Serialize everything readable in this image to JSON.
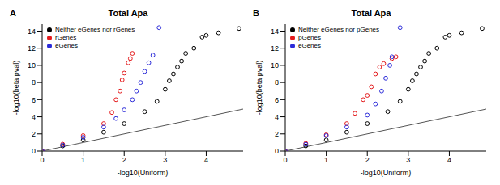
{
  "chart_data": [
    {
      "panel": "A",
      "type": "scatter",
      "title": "Total Apa",
      "x_label": "-log10(Uniform)",
      "y_label": "-log10(beta pval)",
      "xlim": [
        0,
        4.9
      ],
      "ylim": [
        0,
        14.8
      ],
      "xticks": [
        0,
        1,
        2,
        3,
        4
      ],
      "yticks": [
        0,
        2,
        4,
        6,
        8,
        10,
        12,
        14
      ],
      "legend": "upper left",
      "marker": "circle",
      "series": [
        {
          "name": "Neither eGenes nor rGenes",
          "color": "#000000",
          "x": [
            0,
            0.5,
            1,
            1.5,
            2,
            2.5,
            2.8,
            3.0,
            3.1,
            3.2,
            3.3,
            3.4,
            3.5,
            3.7,
            3.9,
            4.0,
            4.3,
            4.8
          ],
          "values": [
            0,
            0.6,
            1.3,
            2.2,
            3.2,
            4.6,
            5.8,
            7.2,
            8.2,
            9,
            9.8,
            10.5,
            11.4,
            12,
            13.3,
            13.5,
            13.8,
            14.3
          ]
        },
        {
          "name": "rGenes",
          "color": "#e41a1c",
          "x": [
            0,
            0.5,
            1,
            1.5,
            1.7,
            1.8,
            1.9,
            1.95,
            2.0,
            2.1,
            2.15,
            2.2
          ],
          "values": [
            0,
            0.8,
            1.8,
            3.2,
            4.5,
            6,
            7,
            8.3,
            9.1,
            10.3,
            10.8,
            11.4
          ]
        },
        {
          "name": "eGenes",
          "color": "#2b2bd9",
          "x": [
            0,
            0.5,
            1,
            1.5,
            1.8,
            2.0,
            2.2,
            2.3,
            2.4,
            2.5,
            2.6,
            2.7,
            2.85
          ],
          "values": [
            0,
            0.7,
            1.6,
            2.8,
            3.8,
            4.8,
            6,
            7,
            8,
            9.3,
            10.3,
            11.2,
            14.4
          ]
        }
      ],
      "reference_line": {
        "x": [
          0,
          4.9
        ],
        "values": [
          0,
          4.9
        ],
        "color": "#555555",
        "line_style": "solid"
      }
    },
    {
      "panel": "B",
      "type": "scatter",
      "title": "Total Apa",
      "x_label": "-log10(Uniform)",
      "y_label": "-log10(beta pval)",
      "xlim": [
        0,
        4.9
      ],
      "ylim": [
        0,
        14.8
      ],
      "xticks": [
        0,
        1,
        2,
        3,
        4
      ],
      "yticks": [
        0,
        2,
        4,
        6,
        8,
        10,
        12,
        14
      ],
      "legend": "upper left",
      "marker": "circle",
      "series": [
        {
          "name": "Neither eGenes nor pGenes",
          "color": "#000000",
          "x": [
            0,
            0.5,
            1,
            1.5,
            2,
            2.5,
            2.8,
            3.0,
            3.1,
            3.2,
            3.3,
            3.4,
            3.5,
            3.7,
            3.9,
            4.0,
            4.3,
            4.8
          ],
          "values": [
            0,
            0.6,
            1.3,
            2.2,
            3.2,
            4.6,
            5.8,
            7.2,
            8.2,
            9,
            9.8,
            10.5,
            11.4,
            12,
            13.3,
            13.5,
            13.8,
            14.3
          ]
        },
        {
          "name": "pGenes",
          "color": "#e41a1c",
          "x": [
            0,
            0.5,
            1,
            1.5,
            1.7,
            1.9,
            2.0,
            2.1,
            2.2,
            2.3,
            2.4,
            2.6,
            2.7
          ],
          "values": [
            0,
            0.9,
            1.9,
            3.2,
            4.4,
            6,
            6.5,
            7.5,
            9,
            9.8,
            10.2,
            10.8,
            11
          ]
        },
        {
          "name": "eGenes",
          "color": "#2b2bd9",
          "x": [
            0,
            0.5,
            1,
            1.5,
            2,
            2.2,
            2.35,
            2.45,
            2.55,
            2.6,
            2.8
          ],
          "values": [
            0,
            0.8,
            1.8,
            2.8,
            4.2,
            5.5,
            7,
            8.5,
            10,
            11,
            14.4
          ]
        }
      ],
      "reference_line": {
        "x": [
          0,
          4.9
        ],
        "values": [
          0,
          4.9
        ],
        "color": "#555555",
        "line_style": "solid"
      }
    }
  ]
}
